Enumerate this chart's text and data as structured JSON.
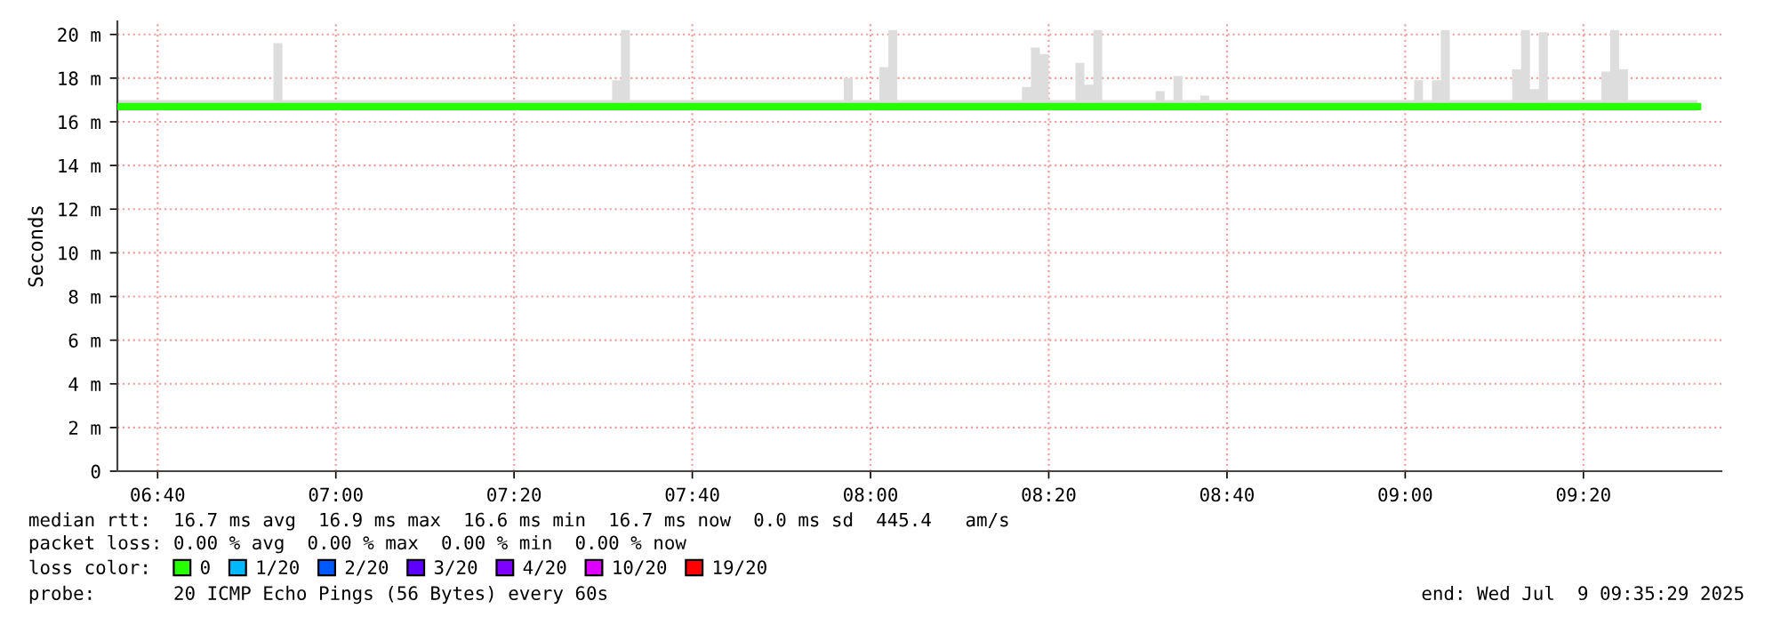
{
  "chart_data": {
    "type": "step",
    "ylabel": "Seconds",
    "xlim": [
      6.5914,
      9.5914
    ],
    "xticks": [
      {
        "value": 6.6667,
        "label": "06:40"
      },
      {
        "value": 7.0,
        "label": "07:00"
      },
      {
        "value": 7.3333,
        "label": "07:20"
      },
      {
        "value": 7.6667,
        "label": "07:40"
      },
      {
        "value": 8.0,
        "label": "08:00"
      },
      {
        "value": 8.3333,
        "label": "08:20"
      },
      {
        "value": 8.6667,
        "label": "08:40"
      },
      {
        "value": 9.0,
        "label": "09:00"
      },
      {
        "value": 9.3333,
        "label": "09:20"
      }
    ],
    "ylim": [
      0,
      20.6
    ],
    "yticks": [
      0,
      {
        "value": 2,
        "label": "2 m"
      },
      {
        "value": 4,
        "label": "4 m"
      },
      {
        "value": 6,
        "label": "6 m"
      },
      {
        "value": 8,
        "label": "8 m"
      },
      {
        "value": 10,
        "label": "10 m"
      },
      {
        "value": 12,
        "label": "12 m"
      },
      {
        "value": 14,
        "label": "14 m"
      },
      {
        "value": 16,
        "label": "16 m"
      },
      {
        "value": 18,
        "label": "18 m"
      },
      {
        "value": 20,
        "label": "20 m"
      }
    ],
    "grid": true,
    "legend": "bottom",
    "legend_title": "loss color:",
    "x": [
      6.5917,
      6.8833,
      6.9,
      7.5167,
      7.5333,
      7.55,
      7.95,
      7.9667,
      8.0167,
      8.0333,
      8.05,
      8.2833,
      8.3,
      8.3167,
      8.3333,
      8.3833,
      8.4,
      8.4167,
      8.4333,
      8.5333,
      8.55,
      8.5667,
      8.5833,
      8.6167,
      8.6333,
      9.0167,
      9.0333,
      9.05,
      9.0667,
      9.0833,
      9.2,
      9.2167,
      9.2333,
      9.25,
      9.2667,
      9.3667,
      9.3833,
      9.4,
      9.4167,
      9.5467
    ],
    "series": [
      {
        "name": "0",
        "color": "#26ff00",
        "values": [
          16.7,
          16.7,
          16.7,
          16.7,
          16.7,
          16.7,
          16.7,
          16.7,
          16.7,
          16.7,
          16.7,
          16.7,
          16.7,
          16.7,
          16.7,
          16.7,
          16.7,
          16.7,
          16.7,
          16.7,
          16.7,
          16.7,
          16.7,
          16.7,
          16.7,
          16.7,
          16.7,
          16.7,
          16.7,
          16.7,
          16.7,
          16.7,
          16.7,
          16.7,
          16.7,
          16.7,
          16.7,
          16.7,
          16.7,
          16.7
        ],
        "lower": [
          16.5,
          16.5,
          16.5,
          16.5,
          16.5,
          16.5,
          16.5,
          16.5,
          16.5,
          16.5,
          16.5,
          16.5,
          16.5,
          16.5,
          16.5,
          16.5,
          16.5,
          16.5,
          16.5,
          16.5,
          16.5,
          16.5,
          16.5,
          16.5,
          16.5,
          16.5,
          16.5,
          16.5,
          16.5,
          16.5,
          16.5,
          16.5,
          16.5,
          16.5,
          16.5,
          16.5,
          16.5,
          16.5,
          16.5,
          16.5
        ],
        "upper": [
          17.0,
          19.6,
          17.0,
          17.9,
          20.2,
          17.0,
          18.0,
          17.0,
          18.5,
          20.2,
          17.0,
          17.6,
          19.4,
          19.1,
          17.0,
          18.7,
          17.7,
          20.2,
          17.0,
          17.4,
          17.0,
          18.1,
          17.0,
          17.2,
          17.0,
          17.9,
          17.0,
          17.9,
          20.2,
          17.0,
          18.4,
          20.2,
          17.5,
          20.1,
          17.0,
          18.3,
          20.2,
          18.4,
          17.0,
          17.0
        ]
      },
      {
        "name": "1/20",
        "color": "#00b8ff",
        "values": [
          null,
          null,
          null,
          null,
          null,
          null,
          null,
          null,
          null,
          null,
          null,
          null,
          null,
          null,
          null,
          null,
          null,
          null,
          null,
          null,
          null,
          null,
          null,
          null,
          null,
          null,
          null,
          null,
          null,
          null,
          null,
          null,
          null,
          null,
          null,
          null,
          null,
          null,
          null,
          null
        ]
      },
      {
        "name": "2/20",
        "color": "#0059ff",
        "values": [
          null,
          null,
          null,
          null,
          null,
          null,
          null,
          null,
          null,
          null,
          null,
          null,
          null,
          null,
          null,
          null,
          null,
          null,
          null,
          null,
          null,
          null,
          null,
          null,
          null,
          null,
          null,
          null,
          null,
          null,
          null,
          null,
          null,
          null,
          null,
          null,
          null,
          null,
          null,
          null
        ]
      },
      {
        "name": "3/20",
        "color": "#5e00ff",
        "values": [
          null,
          null,
          null,
          null,
          null,
          null,
          null,
          null,
          null,
          null,
          null,
          null,
          null,
          null,
          null,
          null,
          null,
          null,
          null,
          null,
          null,
          null,
          null,
          null,
          null,
          null,
          null,
          null,
          null,
          null,
          null,
          null,
          null,
          null,
          null,
          null,
          null,
          null,
          null,
          null
        ]
      },
      {
        "name": "4/20",
        "color": "#7e00ff",
        "values": [
          null,
          null,
          null,
          null,
          null,
          null,
          null,
          null,
          null,
          null,
          null,
          null,
          null,
          null,
          null,
          null,
          null,
          null,
          null,
          null,
          null,
          null,
          null,
          null,
          null,
          null,
          null,
          null,
          null,
          null,
          null,
          null,
          null,
          null,
          null,
          null,
          null,
          null,
          null,
          null
        ]
      },
      {
        "name": "10/20",
        "color": "#dd00ff",
        "values": [
          null,
          null,
          null,
          null,
          null,
          null,
          null,
          null,
          null,
          null,
          null,
          null,
          null,
          null,
          null,
          null,
          null,
          null,
          null,
          null,
          null,
          null,
          null,
          null,
          null,
          null,
          null,
          null,
          null,
          null,
          null,
          null,
          null,
          null,
          null,
          null,
          null,
          null,
          null,
          null
        ]
      },
      {
        "name": "19/20",
        "color": "#ff0000",
        "values": [
          null,
          null,
          null,
          null,
          null,
          null,
          null,
          null,
          null,
          null,
          null,
          null,
          null,
          null,
          null,
          null,
          null,
          null,
          null,
          null,
          null,
          null,
          null,
          null,
          null,
          null,
          null,
          null,
          null,
          null,
          null,
          null,
          null,
          null,
          null,
          null,
          null,
          null,
          null,
          null
        ]
      }
    ],
    "annotations": [
      "median rtt:  16.7 ms avg  16.9 ms max  16.6 ms min  16.7 ms now  0.0 ms sd  445.4   am/s",
      "packet loss: 0.00 % avg  0.00 % max  0.00 % min  0.00 % now",
      "probe:       20 ICMP Echo Pings (56 Bytes) every 60s",
      "end: Wed Jul  9 09:35:29 2025"
    ]
  }
}
